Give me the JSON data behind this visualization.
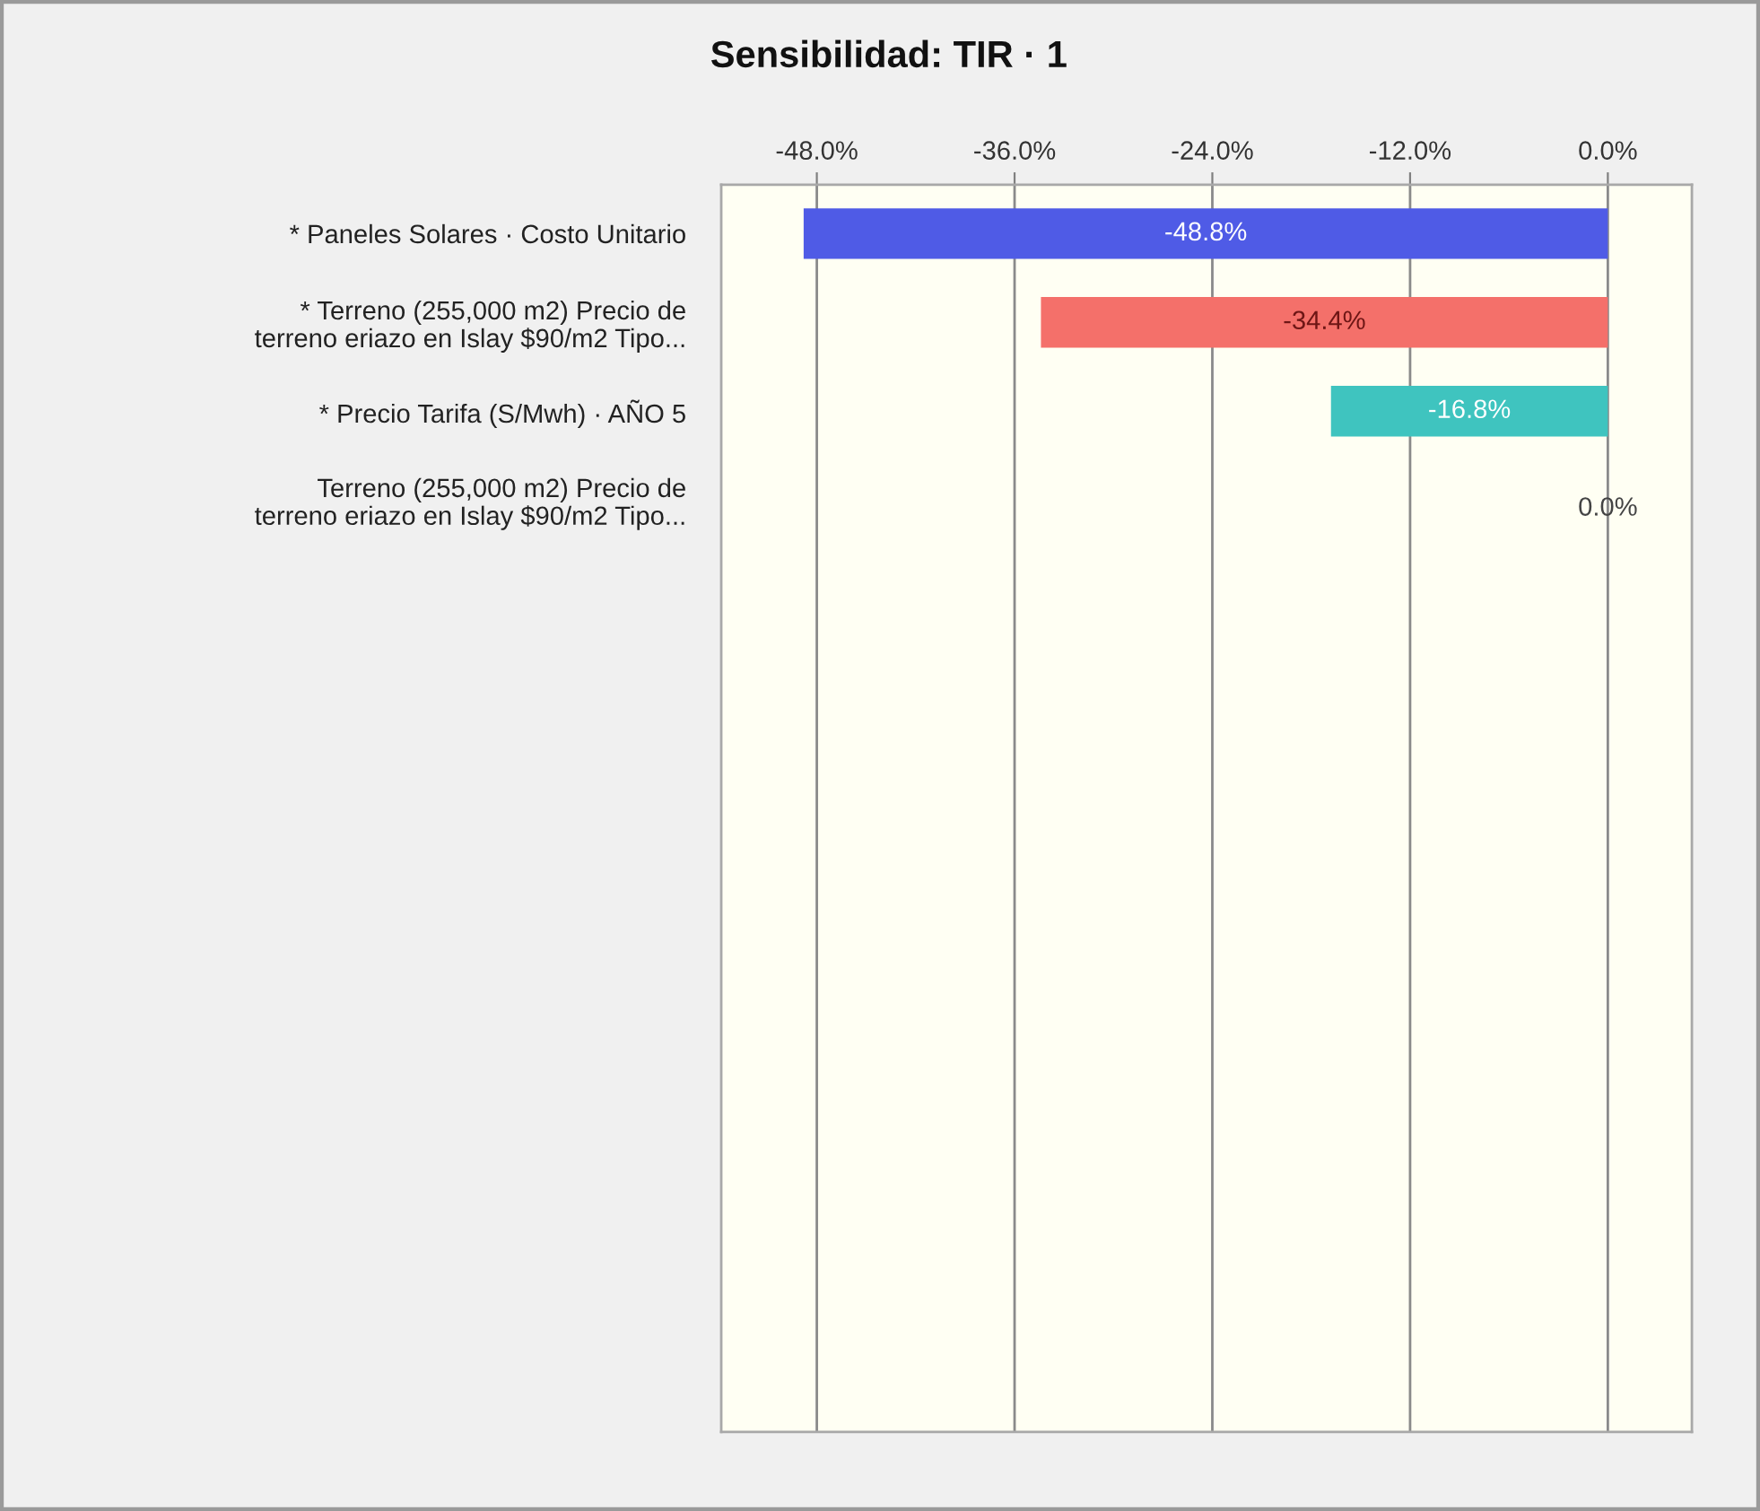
{
  "chart_data": {
    "type": "bar",
    "orientation": "horizontal",
    "title": "Sensibilidad: TIR · 1",
    "categories": [
      "* Paneles Solares · Costo Unitario",
      "* Terreno (255,000 m2) Precio de\nterreno eriazo en Islay $90/m2 Tipo...",
      "* Precio Tarifa (S/Mwh) · AÑO 5",
      "Terreno (255,000 m2) Precio de\nterreno eriazo en Islay $90/m2 Tipo..."
    ],
    "values": [
      -48.8,
      -34.4,
      -16.8,
      0.0
    ],
    "colors": [
      "#4f5be6",
      "#f4706a",
      "#3fc4bf",
      null
    ],
    "value_labels": [
      "-48.8%",
      "-34.4%",
      "-16.8%",
      "0.0%"
    ],
    "xlim": [
      -53.8,
      5.1
    ],
    "xticks": [
      {
        "value": -48,
        "label": "-48.0%"
      },
      {
        "value": -36,
        "label": "-36.0%"
      },
      {
        "value": -24,
        "label": "-24.0%"
      },
      {
        "value": -12,
        "label": "-12.0%"
      },
      {
        "value": 0,
        "label": "0.0%"
      }
    ],
    "grid": "x"
  }
}
